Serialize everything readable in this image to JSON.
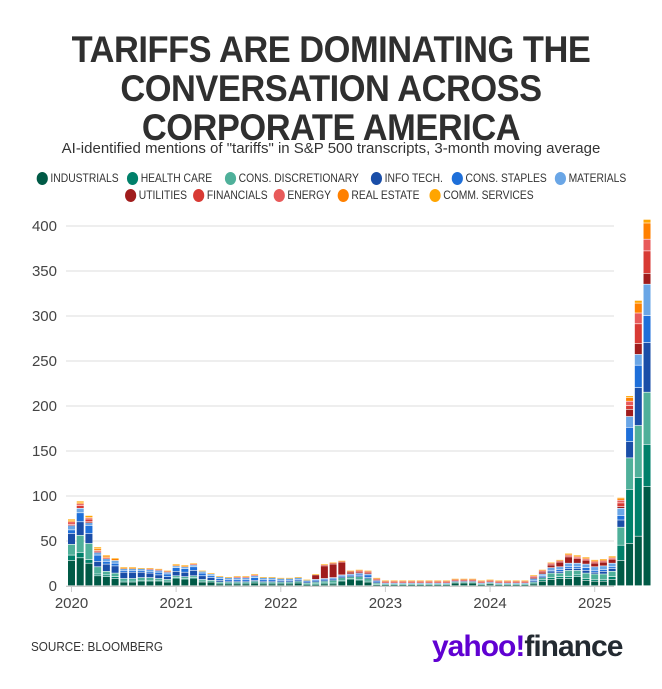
{
  "title_lines": [
    "TARIFFS ARE DOMINATING THE",
    "CONVERSATION ACROSS",
    "CORPORATE AMERICA"
  ],
  "subtitle": "AI-identified mentions of \"tariffs\" in S&P 500 transcripts, 3-month moving average",
  "source": "SOURCE: BLOOMBERG",
  "logo": {
    "part1": "yahoo!",
    "part2": "finance"
  },
  "chart_data": {
    "type": "bar",
    "stacked": true,
    "title": "TARIFFS ARE DOMINATING THE CONVERSATION ACROSS CORPORATE AMERICA",
    "subtitle": "AI-identified mentions of \"tariffs\" in S&P 500 transcripts, 3-month moving average",
    "xlabel": "",
    "ylabel": "",
    "ylim": [
      0,
      400
    ],
    "yticks": [
      0,
      50,
      100,
      150,
      200,
      250,
      300,
      350,
      400
    ],
    "xtick_labels": [
      "2020",
      "2021",
      "2022",
      "2023",
      "2024",
      "2025"
    ],
    "x_start": "2020-01",
    "x_granularity": "month",
    "grid": true,
    "legend_position": "top",
    "series": [
      {
        "name": "INDUSTRIALS",
        "color": "#005a46",
        "values": [
          28,
          31,
          25,
          11,
          10,
          8,
          4,
          4,
          5,
          5,
          5,
          4,
          8,
          7,
          8,
          4,
          4,
          2,
          2,
          2,
          2,
          3,
          2,
          2,
          2,
          2,
          3,
          1,
          1,
          2,
          2,
          5,
          7,
          6,
          4,
          1,
          1,
          1,
          1,
          1,
          1,
          1,
          1,
          1,
          3,
          3,
          3,
          1,
          2,
          1,
          1,
          1,
          1,
          2,
          5,
          7,
          8,
          8,
          10,
          6,
          5,
          5,
          7,
          28,
          47,
          55,
          110
        ]
      },
      {
        "name": "HEALTH CARE",
        "color": "#00806a",
        "values": [
          6,
          6,
          4,
          2,
          2,
          2,
          1,
          1,
          1,
          1,
          1,
          1,
          1,
          1,
          1,
          1,
          1,
          1,
          1,
          1,
          1,
          1,
          1,
          1,
          1,
          1,
          1,
          1,
          1,
          1,
          1,
          1,
          1,
          1,
          1,
          0,
          0,
          0,
          0,
          0,
          0,
          0,
          0,
          0,
          0,
          0,
          0,
          0,
          0,
          0,
          0,
          0,
          0,
          1,
          2,
          2,
          2,
          2,
          2,
          2,
          2,
          2,
          3,
          17,
          60,
          65,
          47
        ]
      },
      {
        "name": "CONS. DISCRETIONARY",
        "color": "#4fb09a",
        "values": [
          12,
          19,
          18,
          8,
          4,
          4,
          3,
          3,
          3,
          3,
          2,
          2,
          2,
          2,
          2,
          2,
          1,
          1,
          1,
          1,
          1,
          1,
          1,
          1,
          1,
          1,
          1,
          1,
          2,
          2,
          3,
          3,
          2,
          3,
          3,
          2,
          1,
          1,
          1,
          1,
          1,
          1,
          1,
          1,
          1,
          1,
          1,
          1,
          1,
          1,
          1,
          1,
          1,
          1,
          2,
          5,
          4,
          7,
          5,
          6,
          6,
          6,
          6,
          20,
          35,
          58,
          58
        ]
      },
      {
        "name": "INFO TECH.",
        "color": "#1a4ea8",
        "values": [
          12,
          15,
          11,
          6,
          8,
          8,
          7,
          7,
          6,
          5,
          4,
          3,
          5,
          5,
          6,
          4,
          3,
          2,
          1,
          1,
          1,
          1,
          1,
          1,
          1,
          1,
          1,
          1,
          1,
          1,
          1,
          1,
          1,
          1,
          1,
          1,
          0,
          0,
          0,
          0,
          0,
          0,
          0,
          0,
          0,
          0,
          0,
          0,
          0,
          0,
          0,
          0,
          0,
          1,
          1,
          2,
          2,
          2,
          2,
          3,
          2,
          3,
          3,
          8,
          18,
          42,
          55
        ]
      },
      {
        "name": "CONS. STAPLES",
        "color": "#1e6fd9",
        "values": [
          4,
          10,
          9,
          7,
          3,
          3,
          2,
          2,
          2,
          2,
          3,
          3,
          4,
          4,
          4,
          3,
          2,
          2,
          2,
          2,
          2,
          3,
          2,
          2,
          1,
          1,
          1,
          1,
          1,
          1,
          1,
          1,
          1,
          2,
          3,
          1,
          0,
          0,
          0,
          0,
          0,
          0,
          0,
          0,
          0,
          0,
          0,
          0,
          0,
          0,
          0,
          0,
          0,
          1,
          1,
          1,
          2,
          2,
          2,
          3,
          2,
          2,
          2,
          5,
          16,
          25,
          30
        ]
      },
      {
        "name": "MATERIALS",
        "color": "#6aa6e6",
        "values": [
          5,
          5,
          3,
          3,
          3,
          3,
          2,
          2,
          2,
          2,
          2,
          2,
          2,
          2,
          2,
          2,
          2,
          2,
          2,
          2,
          2,
          2,
          2,
          2,
          2,
          2,
          2,
          1,
          1,
          1,
          1,
          1,
          1,
          1,
          1,
          1,
          1,
          1,
          1,
          1,
          1,
          1,
          1,
          1,
          1,
          1,
          1,
          1,
          1,
          1,
          1,
          1,
          1,
          2,
          2,
          3,
          3,
          4,
          4,
          4,
          4,
          4,
          4,
          8,
          12,
          12,
          35
        ]
      },
      {
        "name": "UTILITIES",
        "color": "#a01c1c",
        "values": [
          0,
          0,
          1,
          0,
          0,
          0,
          0,
          0,
          0,
          0,
          0,
          0,
          0,
          0,
          0,
          0,
          0,
          0,
          0,
          0,
          0,
          0,
          0,
          0,
          0,
          0,
          0,
          0,
          5,
          14,
          15,
          14,
          2,
          1,
          1,
          0,
          0,
          0,
          0,
          0,
          0,
          0,
          0,
          0,
          0,
          0,
          0,
          0,
          0,
          0,
          0,
          0,
          0,
          1,
          2,
          3,
          5,
          7,
          5,
          4,
          4,
          4,
          4,
          2,
          8,
          12,
          12
        ]
      },
      {
        "name": "FINANCIALS",
        "color": "#d83a34",
        "values": [
          1,
          3,
          3,
          1,
          1,
          0,
          0,
          0,
          0,
          0,
          0,
          0,
          0,
          0,
          0,
          0,
          0,
          0,
          0,
          0,
          0,
          0,
          0,
          0,
          0,
          0,
          0,
          0,
          0,
          1,
          1,
          1,
          1,
          1,
          1,
          1,
          1,
          1,
          1,
          1,
          1,
          1,
          1,
          1,
          1,
          1,
          1,
          1,
          1,
          1,
          1,
          1,
          1,
          1,
          1,
          1,
          1,
          1,
          1,
          1,
          1,
          1,
          1,
          4,
          4,
          22,
          25
        ]
      },
      {
        "name": "ENERGY",
        "color": "#e85a5a",
        "values": [
          3,
          2,
          1,
          1,
          0,
          0,
          0,
          0,
          0,
          1,
          1,
          1,
          0,
          0,
          1,
          0,
          0,
          0,
          0,
          1,
          1,
          1,
          0,
          0,
          0,
          0,
          0,
          0,
          0,
          0,
          0,
          0,
          0,
          1,
          1,
          1,
          1,
          1,
          1,
          1,
          1,
          1,
          1,
          1,
          1,
          1,
          1,
          1,
          1,
          1,
          1,
          1,
          1,
          1,
          1,
          1,
          1,
          1,
          1,
          1,
          1,
          1,
          1,
          3,
          5,
          12,
          13
        ]
      },
      {
        "name": "REAL ESTATE",
        "color": "#ff8000",
        "values": [
          1,
          1,
          1,
          2,
          2,
          2,
          1,
          1,
          0,
          0,
          0,
          0,
          1,
          1,
          0,
          0,
          0,
          0,
          0,
          0,
          0,
          0,
          0,
          0,
          0,
          0,
          0,
          0,
          0,
          0,
          0,
          0,
          0,
          0,
          0,
          0,
          0,
          0,
          0,
          0,
          0,
          0,
          0,
          0,
          0,
          0,
          0,
          0,
          0,
          0,
          0,
          0,
          0,
          0,
          0,
          0,
          0,
          1,
          1,
          1,
          1,
          1,
          1,
          2,
          4,
          11,
          18
        ]
      },
      {
        "name": "COMM. SERVICES",
        "color": "#ffa500",
        "values": [
          2,
          2,
          2,
          2,
          1,
          1,
          1,
          1,
          1,
          1,
          1,
          1,
          1,
          1,
          1,
          1,
          1,
          1,
          1,
          1,
          1,
          1,
          1,
          1,
          1,
          1,
          1,
          1,
          1,
          1,
          1,
          1,
          1,
          1,
          1,
          1,
          1,
          1,
          1,
          1,
          1,
          1,
          1,
          1,
          1,
          1,
          1,
          1,
          1,
          1,
          1,
          1,
          1,
          1,
          1,
          1,
          1,
          1,
          1,
          1,
          1,
          1,
          1,
          1,
          2,
          3,
          4
        ]
      }
    ]
  }
}
